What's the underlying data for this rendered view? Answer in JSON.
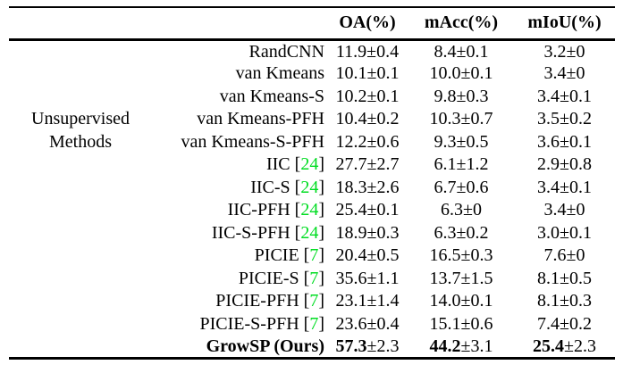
{
  "table": {
    "columns": [
      "OA(%)",
      "mAcc(%)",
      "mIoU(%)"
    ],
    "citation_color": "#00dd22",
    "text_color": "#000000",
    "rows": [
      {
        "group": "",
        "method": "RandCNN",
        "cite": "",
        "oa": "11.9±0.4",
        "macc": "8.4±0.1",
        "miou": "3.2±0",
        "bold": false
      },
      {
        "group": "",
        "method": "van Kmeans",
        "cite": "",
        "oa": "10.1±0.1",
        "macc": "10.0±0.1",
        "miou": "3.4±0",
        "bold": false
      },
      {
        "group": "",
        "method": "van Kmeans-S",
        "cite": "",
        "oa": "10.2±0.1",
        "macc": "9.8±0.3",
        "miou": "3.4±0.1",
        "bold": false
      },
      {
        "group": "Unsupervised",
        "method": "van Kmeans-PFH",
        "cite": "",
        "oa": "10.4±0.2",
        "macc": "10.3±0.7",
        "miou": "3.5±0.2",
        "bold": false
      },
      {
        "group": "Methods",
        "method": "van Kmeans-S-PFH",
        "cite": "",
        "oa": "12.2±0.6",
        "macc": "9.3±0.5",
        "miou": "3.6±0.1",
        "bold": false
      },
      {
        "group": "",
        "method": "IIC",
        "cite": "24",
        "oa": "27.7±2.7",
        "macc": "6.1±1.2",
        "miou": "2.9±0.8",
        "bold": false
      },
      {
        "group": "",
        "method": "IIC-S",
        "cite": "24",
        "oa": "18.3±2.6",
        "macc": "6.7±0.6",
        "miou": "3.4±0.1",
        "bold": false
      },
      {
        "group": "",
        "method": "IIC-PFH",
        "cite": "24",
        "oa": "25.4±0.1",
        "macc": "6.3±0",
        "miou": "3.4±0",
        "bold": false
      },
      {
        "group": "",
        "method": "IIC-S-PFH",
        "cite": "24",
        "oa": "18.9±0.3",
        "macc": "6.3±0.2",
        "miou": "3.0±0.1",
        "bold": false
      },
      {
        "group": "",
        "method": "PICIE",
        "cite": "7",
        "oa": "20.4±0.5",
        "macc": "16.5±0.3",
        "miou": "7.6±0",
        "bold": false
      },
      {
        "group": "",
        "method": "PICIE-S",
        "cite": "7",
        "oa": "35.6±1.1",
        "macc": "13.7±1.5",
        "miou": "8.1±0.5",
        "bold": false
      },
      {
        "group": "",
        "method": "PICIE-PFH",
        "cite": "7",
        "oa": "23.1±1.4",
        "macc": "14.0±0.1",
        "miou": "8.1±0.3",
        "bold": false
      },
      {
        "group": "",
        "method": "PICIE-S-PFH",
        "cite": "7",
        "oa": "23.6±0.4",
        "macc": "15.1±0.6",
        "miou": "7.4±0.2",
        "bold": false
      },
      {
        "group": "",
        "method": "GrowSP (Ours)",
        "cite": "",
        "oa": "57.3±2.3",
        "macc": "44.2±3.1",
        "miou": "25.4±2.3",
        "bold": true
      }
    ]
  }
}
